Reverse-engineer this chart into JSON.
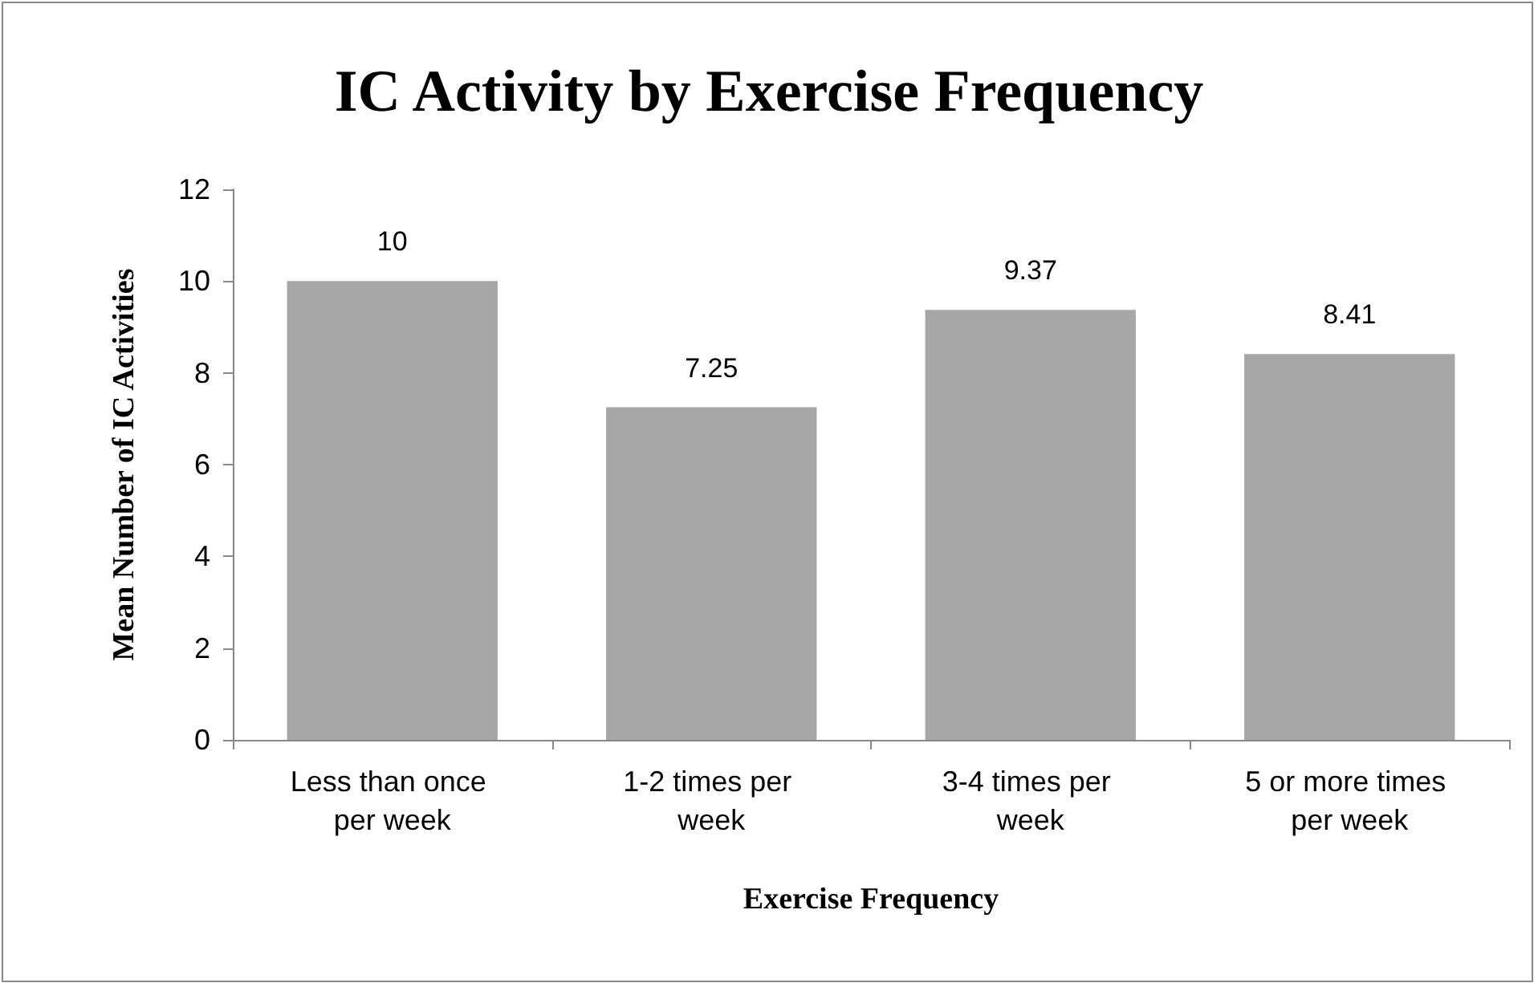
{
  "chart_data": {
    "type": "bar",
    "title": "IC Activity by Exercise Frequency",
    "xlabel": "Exercise Frequency",
    "ylabel": "Mean Number of IC Activities",
    "categories": [
      "Less than once per week",
      "1-2 times per week",
      "3-4 times per week",
      "5 or more times per week"
    ],
    "values": [
      10,
      7.25,
      9.37,
      8.41
    ],
    "color": "#a6a6a6",
    "ylim": [
      0,
      12
    ],
    "yticks": [
      0,
      2,
      4,
      6,
      8,
      10,
      12
    ],
    "grid": false,
    "data_labels": true
  }
}
